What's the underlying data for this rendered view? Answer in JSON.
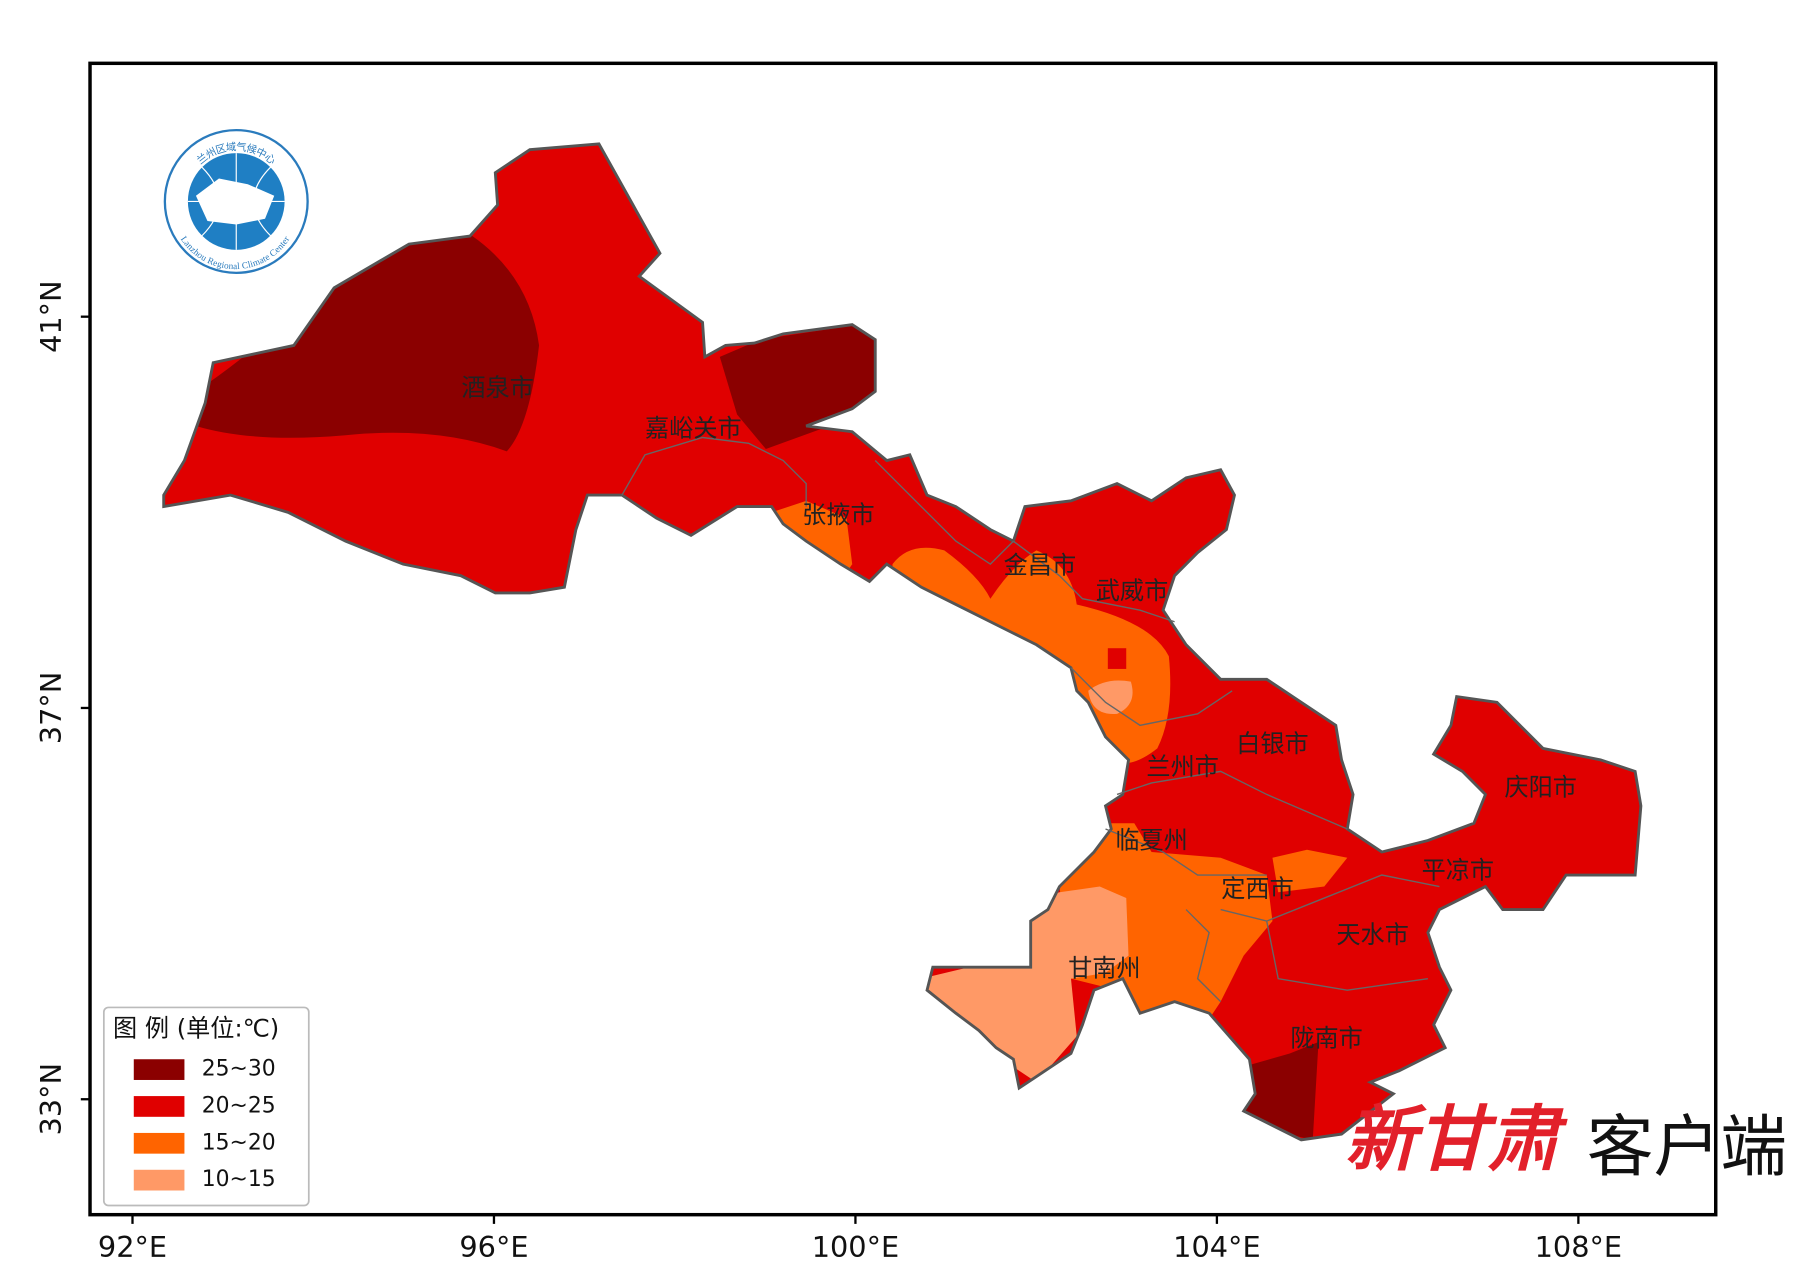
{
  "map": {
    "lon_range": [
      91.53,
      109.52
    ],
    "lat_range": [
      31.82,
      43.59
    ],
    "lon_ticks": [
      {
        "value": 92,
        "label": "92°E"
      },
      {
        "value": 96,
        "label": "96°E"
      },
      {
        "value": 100,
        "label": "100°E"
      },
      {
        "value": 104,
        "label": "104°E"
      },
      {
        "value": 108,
        "label": "108°E"
      }
    ],
    "lat_ticks": [
      {
        "value": 41,
        "label": "41°N"
      },
      {
        "value": 37,
        "label": "37°N"
      },
      {
        "value": 33,
        "label": "33°N"
      }
    ],
    "cities": [
      "酒泉市",
      "嘉峪关市",
      "张掖市",
      "金昌市",
      "武威市",
      "白银市",
      "兰州市",
      "临夏州",
      "定西市",
      "庆阳市",
      "平凉市",
      "天水市",
      "甘南州",
      "陇南市"
    ],
    "legend": {
      "title": "图 例 (单位:℃)",
      "items": [
        {
          "label": "25~30",
          "color": "#8b0000"
        },
        {
          "label": "20~25",
          "color": "#e00000"
        },
        {
          "label": "15~20",
          "color": "#ff6400"
        },
        {
          "label": "10~15",
          "color": "#ff9966"
        }
      ]
    },
    "logo": {
      "name_cn": "兰州区域气候中心",
      "name_en": "Lanzhou Regional Climate Center"
    },
    "watermark": {
      "brand": "新甘肃",
      "suffix": "客户端"
    }
  }
}
